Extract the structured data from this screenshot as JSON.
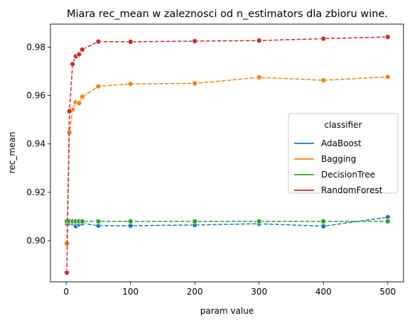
{
  "chart_data": {
    "type": "line",
    "title": "Miara rec_mean w zaleznosci od n_estimators dla zbioru wine.",
    "xlabel": "param value",
    "ylabel": "rec_mean",
    "xlim": [
      -24.5,
      524.5
    ],
    "ylim": [
      0.883,
      0.9895
    ],
    "xticks": [
      0,
      100,
      200,
      300,
      400,
      500
    ],
    "yticks": [
      0.9,
      0.92,
      0.94,
      0.96,
      0.98
    ],
    "ytick_labels": [
      "0.90",
      "0.92",
      "0.94",
      "0.96",
      "0.98"
    ],
    "grid": false,
    "legend": {
      "title": "classifier",
      "placement": "center-right"
    },
    "x": [
      1,
      5,
      10,
      15,
      20,
      25,
      50,
      100,
      200,
      300,
      400,
      500
    ],
    "series": [
      {
        "name": "AdaBoost",
        "color": "#1f77b4",
        "values": [
          0.9072,
          0.9072,
          0.9072,
          0.906,
          0.9068,
          0.9072,
          0.9062,
          0.9062,
          0.9065,
          0.907,
          0.906,
          0.9097
        ]
      },
      {
        "name": "Bagging",
        "color": "#ff7f0e",
        "values": [
          0.8988,
          0.9447,
          0.9542,
          0.9572,
          0.9568,
          0.9595,
          0.9638,
          0.9648,
          0.965,
          0.9675,
          0.9663,
          0.9677
        ]
      },
      {
        "name": "DecisionTree",
        "color": "#2ca02c",
        "values": [
          0.908,
          0.908,
          0.908,
          0.908,
          0.908,
          0.908,
          0.908,
          0.908,
          0.908,
          0.908,
          0.908,
          0.908
        ]
      },
      {
        "name": "RandomForest",
        "color": "#d62728",
        "values": [
          0.8868,
          0.9535,
          0.973,
          0.9762,
          0.977,
          0.979,
          0.9823,
          0.9822,
          0.9825,
          0.9827,
          0.9835,
          0.9842
        ]
      }
    ]
  }
}
